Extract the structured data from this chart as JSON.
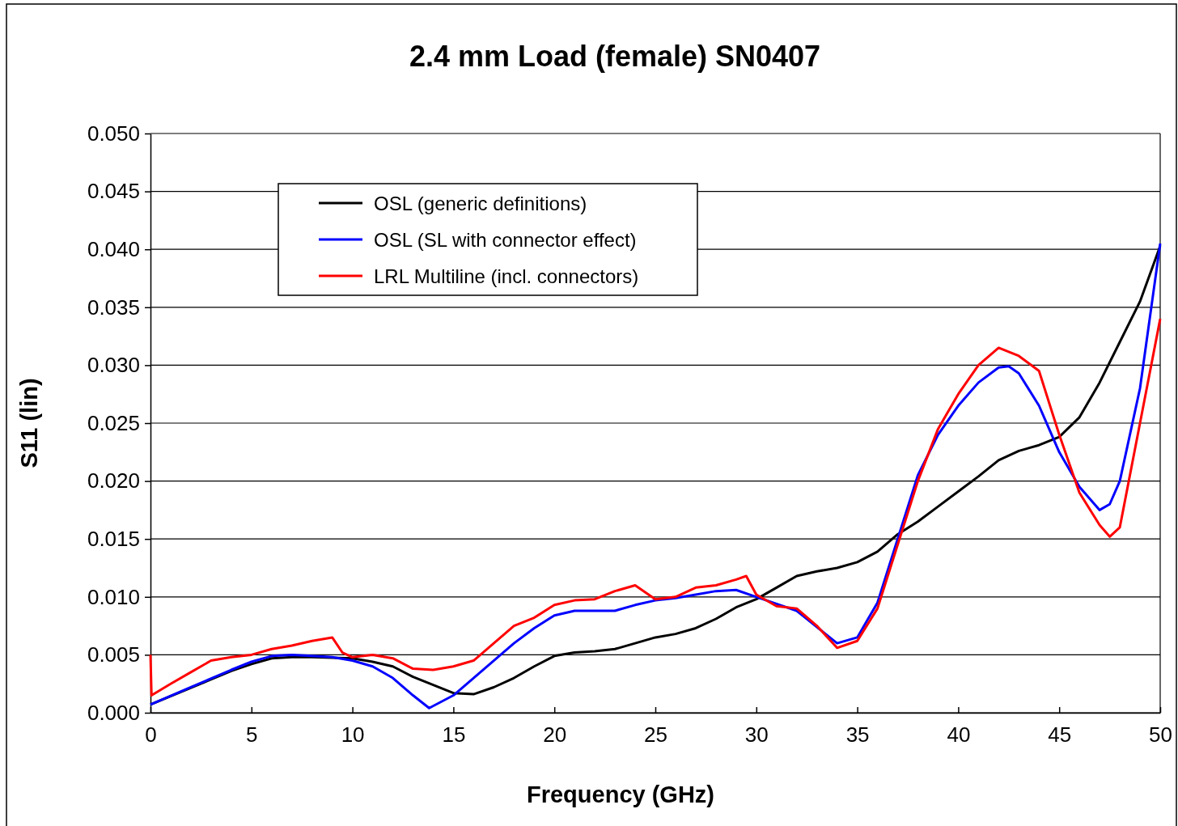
{
  "chart_data": {
    "type": "line",
    "title": "2.4 mm Load (female) SN0407",
    "xlabel": "Frequency  (GHz)",
    "ylabel": "S11  (lin)",
    "xlim": [
      0,
      50
    ],
    "xticks": [
      0,
      5,
      10,
      15,
      20,
      25,
      30,
      35,
      40,
      45,
      50
    ],
    "ylim": [
      0,
      0.05
    ],
    "yticks": [
      {
        "value": 0,
        "label": "0.000"
      },
      {
        "value": 0.005,
        "label": "0.005"
      },
      {
        "value": 0.01,
        "label": "0.010"
      },
      {
        "value": 0.015,
        "label": "0.015"
      },
      {
        "value": 0.02,
        "label": "0.020"
      },
      {
        "value": 0.025,
        "label": "0.025"
      },
      {
        "value": 0.03,
        "label": "0.030"
      },
      {
        "value": 0.035,
        "label": "0.035"
      },
      {
        "value": 0.04,
        "label": "0.040"
      },
      {
        "value": 0.045,
        "label": "0.045"
      },
      {
        "value": 0.05,
        "label": "0.050"
      }
    ],
    "grid": "y",
    "legend": "top left",
    "marker": "none",
    "line_style": "solid",
    "series": [
      {
        "name": "OSL (generic definitions)",
        "color": "#000000",
        "x": [
          0,
          4,
          5,
          6,
          7,
          8,
          10,
          11,
          12,
          13,
          14,
          15,
          16,
          17,
          18,
          19,
          20,
          21,
          22,
          23,
          24,
          25,
          26,
          27,
          28,
          29,
          30,
          31,
          32,
          33,
          34,
          35,
          36,
          37,
          38,
          39,
          40,
          41,
          42,
          43,
          44,
          45,
          46,
          47,
          48,
          49,
          50
        ],
        "values": [
          0.0007,
          0.0036,
          0.0042,
          0.0047,
          0.0048,
          0.0048,
          0.0047,
          0.0044,
          0.004,
          0.0031,
          0.0024,
          0.0017,
          0.0016,
          0.0022,
          0.003,
          0.004,
          0.0049,
          0.0052,
          0.0053,
          0.0055,
          0.006,
          0.0065,
          0.0068,
          0.0073,
          0.0081,
          0.0091,
          0.0098,
          0.0108,
          0.0118,
          0.0122,
          0.0125,
          0.013,
          0.0139,
          0.0154,
          0.0165,
          0.0178,
          0.0191,
          0.0204,
          0.0218,
          0.0226,
          0.0231,
          0.0238,
          0.0255,
          0.0285,
          0.032,
          0.0355,
          0.0403
        ]
      },
      {
        "name": "OSL (SL with connector effect)",
        "color": "#0000ff",
        "x": [
          0,
          2,
          4,
          5,
          6,
          7,
          8,
          9,
          10,
          11,
          12,
          13,
          13.8,
          15,
          16,
          17,
          18,
          19,
          20,
          21,
          22,
          23,
          24,
          25,
          26,
          27,
          28,
          29,
          30,
          31,
          32,
          33,
          34,
          35,
          36,
          37,
          38,
          39,
          40,
          41,
          42,
          42.5,
          43,
          44,
          45,
          46,
          47,
          47.5,
          48,
          49,
          50
        ],
        "values": [
          0.0007,
          0.0022,
          0.0037,
          0.0044,
          0.0049,
          0.005,
          0.0049,
          0.0048,
          0.0045,
          0.004,
          0.003,
          0.0015,
          0.0004,
          0.0015,
          0.003,
          0.0045,
          0.006,
          0.0073,
          0.0084,
          0.0088,
          0.0088,
          0.0088,
          0.0093,
          0.0097,
          0.0099,
          0.0102,
          0.0105,
          0.0106,
          0.01,
          0.0094,
          0.0088,
          0.0074,
          0.006,
          0.0065,
          0.0095,
          0.015,
          0.0205,
          0.024,
          0.0265,
          0.0285,
          0.0298,
          0.0299,
          0.0293,
          0.0265,
          0.0225,
          0.0195,
          0.0175,
          0.018,
          0.02,
          0.028,
          0.0405
        ]
      },
      {
        "name": "LRL Multiline (incl. connectors)",
        "color": "#ff0000",
        "x": [
          0,
          0.05,
          1,
          2,
          3,
          4,
          5,
          6,
          7,
          8,
          9,
          9.5,
          10,
          11,
          12,
          13,
          14,
          15,
          16,
          17,
          18,
          19,
          20,
          21,
          22,
          23,
          24,
          25,
          26,
          27,
          28,
          29,
          29.5,
          30,
          31,
          32,
          33,
          34,
          35,
          36,
          37,
          38,
          39,
          40,
          41,
          42,
          43,
          44,
          45,
          46,
          47,
          47.5,
          48,
          49,
          50
        ],
        "values": [
          0.005,
          0.0015,
          0.0025,
          0.0035,
          0.0045,
          0.0048,
          0.005,
          0.0055,
          0.0058,
          0.0062,
          0.0065,
          0.0052,
          0.0048,
          0.005,
          0.0047,
          0.0038,
          0.0037,
          0.004,
          0.0045,
          0.006,
          0.0075,
          0.0082,
          0.0093,
          0.0097,
          0.0098,
          0.0105,
          0.011,
          0.0098,
          0.01,
          0.0108,
          0.011,
          0.0115,
          0.0118,
          0.0102,
          0.0092,
          0.009,
          0.0075,
          0.0056,
          0.0062,
          0.009,
          0.0145,
          0.02,
          0.0245,
          0.0275,
          0.03,
          0.0315,
          0.0308,
          0.0295,
          0.024,
          0.019,
          0.0162,
          0.0152,
          0.016,
          0.025,
          0.034
        ]
      }
    ]
  }
}
